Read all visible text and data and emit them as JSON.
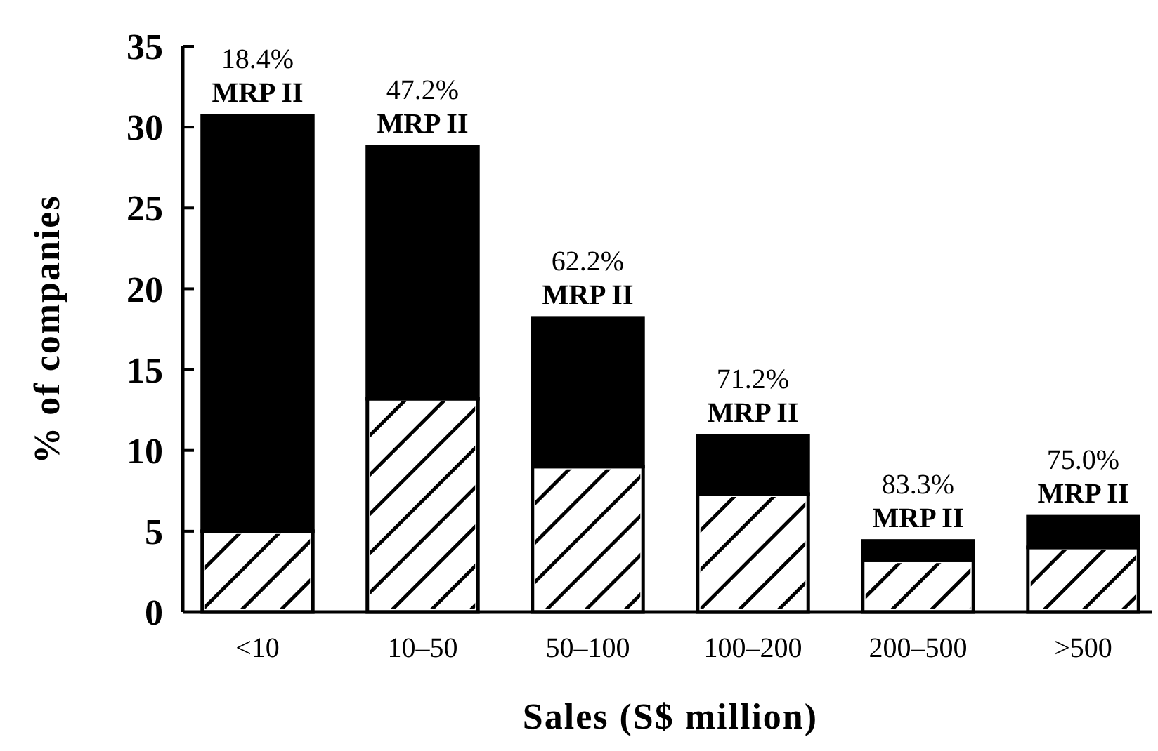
{
  "chart_data": {
    "type": "bar",
    "stacked": true,
    "xlabel": "Sales (S$ million)",
    "ylabel": "% of companies",
    "categories": [
      "<10",
      "10–50",
      "50–100",
      "100–200",
      "200–500",
      ">500"
    ],
    "series": [
      {
        "color": "#ffffff",
        "values": [
          5.0,
          13.2,
          9.0,
          7.3,
          3.2,
          4.0
        ]
      },
      {
        "color": "#000000",
        "values": [
          25.7,
          15.6,
          9.2,
          3.6,
          1.2,
          1.9
        ]
      }
    ],
    "ylim": [
      0,
      35
    ],
    "yticks": [
      0,
      5,
      10,
      15,
      20,
      25,
      30,
      35
    ],
    "annotations": [
      {
        "text": "18.4%\nMRP II",
        "x": "<10",
        "y": 30.7
      },
      {
        "text": "47.2%\nMRP II",
        "x": "10–50",
        "y": 28.8
      },
      {
        "text": "62.2%\nMRP II",
        "x": "50–100",
        "y": 18.2
      },
      {
        "text": "71.2%\nMRP II",
        "x": "100–200",
        "y": 10.9
      },
      {
        "text": "83.3%\nMRP II",
        "x": "200–500",
        "y": 4.4
      },
      {
        "text": "75.0%\nMRP II",
        "x": ">500",
        "y": 5.9
      }
    ]
  }
}
